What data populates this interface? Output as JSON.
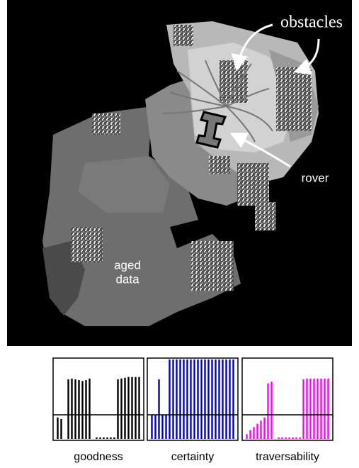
{
  "annotations": {
    "obstacles": "obstacles",
    "rover": "rover",
    "aged": "aged",
    "data": "data"
  },
  "chart_data": [
    {
      "type": "bar",
      "title": "goodness",
      "color": "#000000",
      "ylim": [
        0,
        1
      ],
      "values": [
        0.27,
        0.25,
        0,
        0.75,
        0.76,
        0.75,
        0.74,
        0.73,
        0.74,
        0.76,
        0,
        0.02,
        0.02,
        0.02,
        0.02,
        0.02,
        0.02,
        0.75,
        0.76,
        0.77,
        0.78,
        0.78,
        0.78,
        0.78
      ]
    },
    {
      "type": "bar",
      "title": "certainty",
      "color": "#0000cc",
      "ylim": [
        0,
        1
      ],
      "values": [
        0.3,
        0.3,
        0.75,
        0.3,
        0.3,
        1,
        1,
        1,
        1,
        1,
        1,
        1,
        1,
        1,
        1,
        1,
        1,
        1,
        1,
        1,
        1,
        1,
        1,
        1
      ]
    },
    {
      "type": "bar",
      "title": "traversability",
      "color": "#ff00ff",
      "ylim": [
        0,
        1
      ],
      "values": [
        0.06,
        0.11,
        0.15,
        0.19,
        0.23,
        0.27,
        0.7,
        0.72,
        0,
        0.02,
        0.02,
        0.02,
        0.02,
        0.02,
        0.02,
        0.02,
        0.75,
        0.76,
        0.76,
        0.76,
        0.76,
        0.76,
        0.76,
        0.76
      ]
    }
  ]
}
